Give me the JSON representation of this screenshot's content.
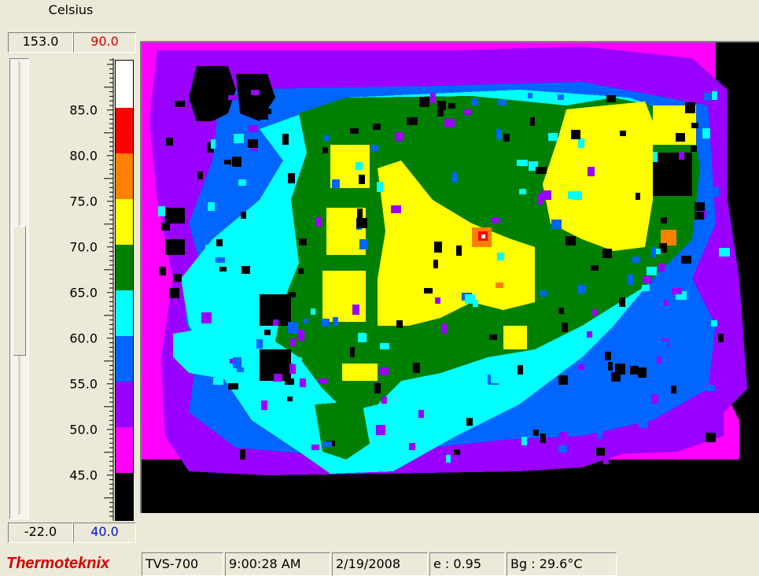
{
  "scale": {
    "unit": "Celsius",
    "max_limit": "153.0",
    "max_value": "90.0",
    "min_limit": "-22.0",
    "min_value": "40.0",
    "tick_labels": [
      "85.0",
      "80.0",
      "75.0",
      "70.0",
      "65.0",
      "60.0",
      "55.0",
      "50.0",
      "45.0"
    ],
    "palette": [
      "#ffffff",
      "#ff0000",
      "#ff8000",
      "#ffff00",
      "#008000",
      "#00ffff",
      "#0066ff",
      "#9900ff",
      "#ff00ff",
      "#000000"
    ]
  },
  "thermal_image": {
    "colors": {
      "background": "#ff00ff",
      "black": "#000000",
      "purple": "#9900ff",
      "blue": "#0066ff",
      "cyan": "#00ffff",
      "green": "#008000",
      "yellow": "#ffff00",
      "orange": "#ff8000",
      "red": "#ff0000",
      "white": "#ffffff"
    }
  },
  "status": {
    "brand": "Thermoteknix",
    "model": "TVS-700",
    "time": "9:00:28 AM",
    "date": "2/19/2008",
    "emissivity": "e : 0.95",
    "background_temp": "Bg : 29.6°C"
  }
}
